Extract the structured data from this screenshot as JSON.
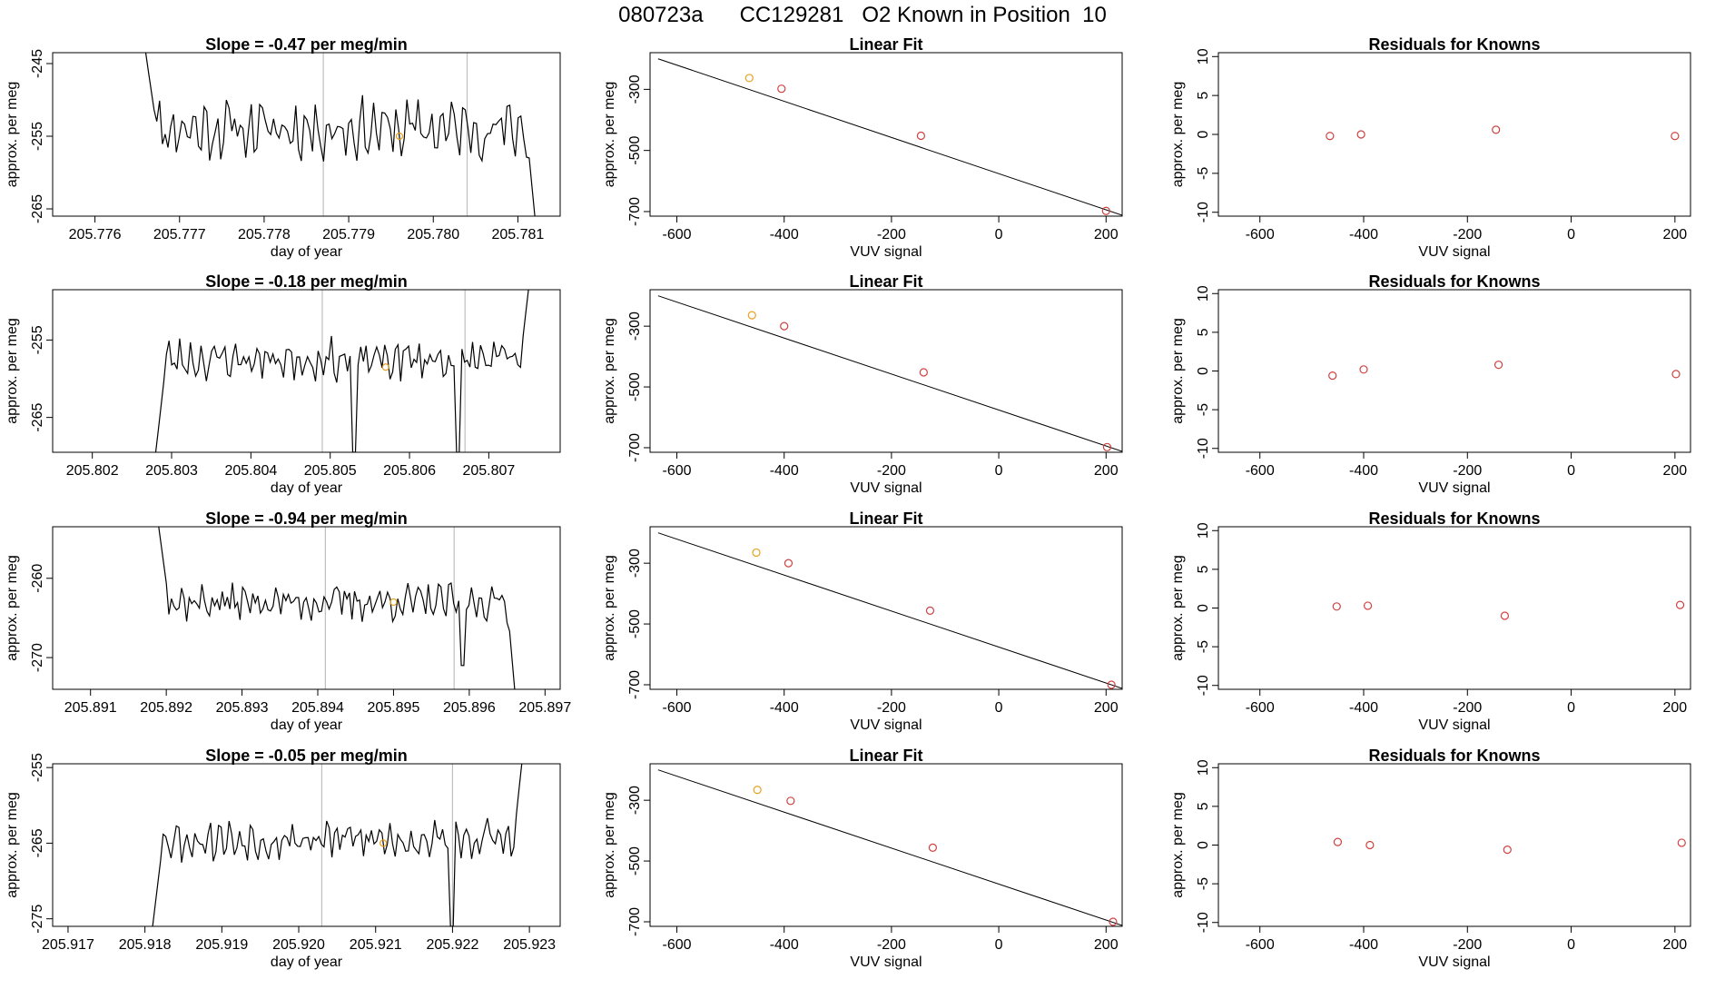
{
  "page": {
    "title": "080723a      CC129281   O2 Known in Position  10"
  },
  "colors": {
    "trace": "#000000",
    "vline": "#bebebe",
    "known_point": "#e8a020",
    "standard_point": "#d04040",
    "fit_line": "#000000"
  },
  "chart_data": [
    {
      "type": "line",
      "row": 0,
      "col": 0,
      "title": "Slope =  -0.47  per meg/min",
      "xlabel": "day of year",
      "ylabel": "approx. per meg",
      "xlim": [
        205.7755,
        205.7815
      ],
      "ylim": [
        -266,
        -243.5
      ],
      "xticks": [
        205.776,
        205.777,
        205.778,
        205.779,
        205.78,
        205.781
      ],
      "xtick_labels": [
        "205.776",
        "205.777",
        "205.778",
        "205.779",
        "205.780",
        "205.781"
      ],
      "yticks": [
        -245,
        -255,
        -265
      ],
      "ytick_labels": [
        "-245",
        "-255",
        "-265"
      ],
      "vlines": [
        205.7787,
        205.7804
      ],
      "known_marker": {
        "x": 205.7796,
        "y": -255.0
      },
      "trace": {
        "x_start": 205.7766,
        "x_end": 205.7812,
        "base": -254.0,
        "amp": 2.8,
        "start_val": -243.5,
        "end_val": -266,
        "dip": null,
        "seed": 11
      }
    },
    {
      "type": "scatter",
      "row": 0,
      "col": 1,
      "title": "Linear Fit",
      "xlabel": "VUV signal",
      "ylabel": "approx. per meg",
      "xlim": [
        -650,
        230
      ],
      "ylim": [
        -715,
        -180
      ],
      "xticks": [
        -600,
        -400,
        -200,
        0,
        200
      ],
      "xtick_labels": [
        "-600",
        "-400",
        "-200",
        "0",
        "200"
      ],
      "yticks": [
        -300,
        -500,
        -700
      ],
      "ytick_labels": [
        "-300",
        "-500",
        "-700"
      ],
      "fit_line": {
        "x1": -635,
        "y1": -200,
        "x2": 230,
        "y2": -712
      },
      "points": [
        {
          "x": -465,
          "y": -263,
          "kind": "known"
        },
        {
          "x": -405,
          "y": -298,
          "kind": "standard"
        },
        {
          "x": -145,
          "y": -452,
          "kind": "standard"
        },
        {
          "x": 200,
          "y": -698,
          "kind": "standard"
        }
      ]
    },
    {
      "type": "scatter",
      "row": 0,
      "col": 2,
      "title": "Residuals for Knowns",
      "xlabel": "VUV signal",
      "ylabel": "approx. per meg",
      "xlim": [
        -680,
        230
      ],
      "ylim": [
        -10.5,
        10.5
      ],
      "xticks": [
        -600,
        -400,
        -200,
        0,
        200
      ],
      "xtick_labels": [
        "-600",
        "-400",
        "-200",
        "0",
        "200"
      ],
      "yticks": [
        10,
        5,
        0,
        -5,
        -10
      ],
      "ytick_labels": [
        "10",
        "5",
        "0",
        "-5",
        "-10"
      ],
      "points": [
        {
          "x": -465,
          "y": -0.2,
          "kind": "standard"
        },
        {
          "x": -405,
          "y": 0.0,
          "kind": "standard"
        },
        {
          "x": -145,
          "y": 0.6,
          "kind": "standard"
        },
        {
          "x": 200,
          "y": -0.2,
          "kind": "standard"
        }
      ]
    },
    {
      "type": "line",
      "row": 1,
      "col": 0,
      "title": "Slope =  -0.18  per meg/min",
      "xlabel": "day of year",
      "ylabel": "approx. per meg",
      "xlim": [
        205.8015,
        205.8079
      ],
      "ylim": [
        -269.5,
        -248.5
      ],
      "xticks": [
        205.802,
        205.803,
        205.804,
        205.805,
        205.806,
        205.807
      ],
      "xtick_labels": [
        "205.802",
        "205.803",
        "205.804",
        "205.805",
        "205.806",
        "205.807"
      ],
      "yticks": [
        -255,
        -265
      ],
      "ytick_labels": [
        "-255",
        "-265"
      ],
      "vlines": [
        205.8049,
        205.8067
      ],
      "known_marker": {
        "x": 205.8057,
        "y": -258.5
      },
      "trace": {
        "x_start": 205.8028,
        "x_end": 205.8075,
        "base": -257.5,
        "amp": 1.8,
        "start_val": -269.5,
        "end_val": -248.5,
        "dip": {
          "x": 205.8053,
          "val": -269.5
        },
        "dip2": {
          "x": 205.8066,
          "val": -269.5
        },
        "seed": 23
      }
    },
    {
      "type": "scatter",
      "row": 1,
      "col": 1,
      "title": "Linear Fit",
      "xlabel": "VUV signal",
      "ylabel": "approx. per meg",
      "xlim": [
        -650,
        230
      ],
      "ylim": [
        -715,
        -180
      ],
      "xticks": [
        -600,
        -400,
        -200,
        0,
        200
      ],
      "xtick_labels": [
        "-600",
        "-400",
        "-200",
        "0",
        "200"
      ],
      "yticks": [
        -300,
        -500,
        -700
      ],
      "ytick_labels": [
        "-300",
        "-500",
        "-700"
      ],
      "fit_line": {
        "x1": -635,
        "y1": -200,
        "x2": 230,
        "y2": -712
      },
      "points": [
        {
          "x": -460,
          "y": -264,
          "kind": "known"
        },
        {
          "x": -400,
          "y": -300,
          "kind": "standard"
        },
        {
          "x": -140,
          "y": -452,
          "kind": "standard"
        },
        {
          "x": 202,
          "y": -698,
          "kind": "standard"
        }
      ]
    },
    {
      "type": "scatter",
      "row": 1,
      "col": 2,
      "title": "Residuals for Knowns",
      "xlabel": "VUV signal",
      "ylabel": "approx. per meg",
      "xlim": [
        -680,
        230
      ],
      "ylim": [
        -10.5,
        10.5
      ],
      "xticks": [
        -600,
        -400,
        -200,
        0,
        200
      ],
      "xtick_labels": [
        "-600",
        "-400",
        "-200",
        "0",
        "200"
      ],
      "yticks": [
        10,
        5,
        0,
        -5,
        -10
      ],
      "ytick_labels": [
        "10",
        "5",
        "0",
        "-5",
        "-10"
      ],
      "points": [
        {
          "x": -460,
          "y": -0.6,
          "kind": "standard"
        },
        {
          "x": -400,
          "y": 0.2,
          "kind": "standard"
        },
        {
          "x": -140,
          "y": 0.8,
          "kind": "standard"
        },
        {
          "x": 202,
          "y": -0.4,
          "kind": "standard"
        }
      ]
    },
    {
      "type": "line",
      "row": 2,
      "col": 0,
      "title": "Slope =  -0.94  per meg/min",
      "xlabel": "day of year",
      "ylabel": "approx. per meg",
      "xlim": [
        205.8905,
        205.8972
      ],
      "ylim": [
        -274,
        -253.5
      ],
      "xticks": [
        205.891,
        205.892,
        205.893,
        205.894,
        205.895,
        205.896,
        205.897
      ],
      "xtick_labels": [
        "205.891",
        "205.892",
        "205.893",
        "205.894",
        "205.895",
        "205.896",
        "205.897"
      ],
      "yticks": [
        -260,
        -270
      ],
      "ytick_labels": [
        "-260",
        "-270"
      ],
      "vlines": [
        205.8941,
        205.8958
      ],
      "known_marker": {
        "x": 205.895,
        "y": -263.0
      },
      "trace": {
        "x_start": 205.8919,
        "x_end": 205.8966,
        "base": -263.0,
        "amp": 1.6,
        "start_val": -253.5,
        "end_val": -274,
        "dip": {
          "x": 205.8959,
          "val": -271.0
        },
        "seed": 37
      }
    },
    {
      "type": "scatter",
      "row": 2,
      "col": 1,
      "title": "Linear Fit",
      "xlabel": "VUV signal",
      "ylabel": "approx. per meg",
      "xlim": [
        -650,
        230
      ],
      "ylim": [
        -715,
        -180
      ],
      "xticks": [
        -600,
        -400,
        -200,
        0,
        200
      ],
      "xtick_labels": [
        "-600",
        "-400",
        "-200",
        "0",
        "200"
      ],
      "yticks": [
        -300,
        -500,
        -700
      ],
      "ytick_labels": [
        "-300",
        "-500",
        "-700"
      ],
      "fit_line": {
        "x1": -635,
        "y1": -200,
        "x2": 230,
        "y2": -712
      },
      "points": [
        {
          "x": -452,
          "y": -265,
          "kind": "known"
        },
        {
          "x": -392,
          "y": -300,
          "kind": "standard"
        },
        {
          "x": -128,
          "y": -456,
          "kind": "standard"
        },
        {
          "x": 210,
          "y": -700,
          "kind": "standard"
        }
      ]
    },
    {
      "type": "scatter",
      "row": 2,
      "col": 2,
      "title": "Residuals for Knowns",
      "xlabel": "VUV signal",
      "ylabel": "approx. per meg",
      "xlim": [
        -680,
        230
      ],
      "ylim": [
        -10.5,
        10.5
      ],
      "xticks": [
        -600,
        -400,
        -200,
        0,
        200
      ],
      "xtick_labels": [
        "-600",
        "-400",
        "-200",
        "0",
        "200"
      ],
      "yticks": [
        10,
        5,
        0,
        -5,
        -10
      ],
      "ytick_labels": [
        "10",
        "5",
        "0",
        "-5",
        "-10"
      ],
      "points": [
        {
          "x": -452,
          "y": 0.2,
          "kind": "standard"
        },
        {
          "x": -392,
          "y": 0.3,
          "kind": "standard"
        },
        {
          "x": -128,
          "y": -1.0,
          "kind": "standard"
        },
        {
          "x": 210,
          "y": 0.4,
          "kind": "standard"
        }
      ]
    },
    {
      "type": "line",
      "row": 3,
      "col": 0,
      "title": "Slope =  -0.05  per meg/min",
      "xlabel": "day of year",
      "ylabel": "approx. per meg",
      "xlim": [
        205.9168,
        205.9234
      ],
      "ylim": [
        -276,
        -254.5
      ],
      "xticks": [
        205.917,
        205.918,
        205.919,
        205.92,
        205.921,
        205.922,
        205.923
      ],
      "xtick_labels": [
        "205.917",
        "205.918",
        "205.919",
        "205.920",
        "205.921",
        "205.922",
        "205.923"
      ],
      "yticks": [
        -255,
        -265,
        -275
      ],
      "ytick_labels": [
        "-255",
        "-265",
        "-275"
      ],
      "vlines": [
        205.9203,
        205.922
      ],
      "known_marker": {
        "x": 205.9211,
        "y": -265.0
      },
      "trace": {
        "x_start": 205.9181,
        "x_end": 205.9229,
        "base": -264.5,
        "amp": 1.9,
        "start_val": -276,
        "end_val": -254.5,
        "dip": {
          "x": 205.922,
          "val": -276
        },
        "seed": 53
      }
    },
    {
      "type": "scatter",
      "row": 3,
      "col": 1,
      "title": "Linear Fit",
      "xlabel": "VUV signal",
      "ylabel": "approx. per meg",
      "xlim": [
        -650,
        230
      ],
      "ylim": [
        -715,
        -180
      ],
      "xticks": [
        -600,
        -400,
        -200,
        0,
        200
      ],
      "xtick_labels": [
        "-600",
        "-400",
        "-200",
        "0",
        "200"
      ],
      "yticks": [
        -300,
        -500,
        -700
      ],
      "ytick_labels": [
        "-300",
        "-500",
        "-700"
      ],
      "fit_line": {
        "x1": -635,
        "y1": -200,
        "x2": 230,
        "y2": -712
      },
      "points": [
        {
          "x": -450,
          "y": -266,
          "kind": "known"
        },
        {
          "x": -388,
          "y": -302,
          "kind": "standard"
        },
        {
          "x": -123,
          "y": -456,
          "kind": "standard"
        },
        {
          "x": 213,
          "y": -700,
          "kind": "standard"
        }
      ]
    },
    {
      "type": "scatter",
      "row": 3,
      "col": 2,
      "title": "Residuals for Knowns",
      "xlabel": "VUV signal",
      "ylabel": "approx. per meg",
      "xlim": [
        -680,
        230
      ],
      "ylim": [
        -10.5,
        10.5
      ],
      "xticks": [
        -600,
        -400,
        -200,
        0,
        200
      ],
      "xtick_labels": [
        "-600",
        "-400",
        "-200",
        "0",
        "200"
      ],
      "yticks": [
        10,
        5,
        0,
        -5,
        -10
      ],
      "ytick_labels": [
        "10",
        "5",
        "0",
        "-5",
        "-10"
      ],
      "points": [
        {
          "x": -450,
          "y": 0.4,
          "kind": "standard"
        },
        {
          "x": -388,
          "y": 0.0,
          "kind": "standard"
        },
        {
          "x": -123,
          "y": -0.6,
          "kind": "standard"
        },
        {
          "x": 213,
          "y": 0.3,
          "kind": "standard"
        }
      ]
    }
  ]
}
